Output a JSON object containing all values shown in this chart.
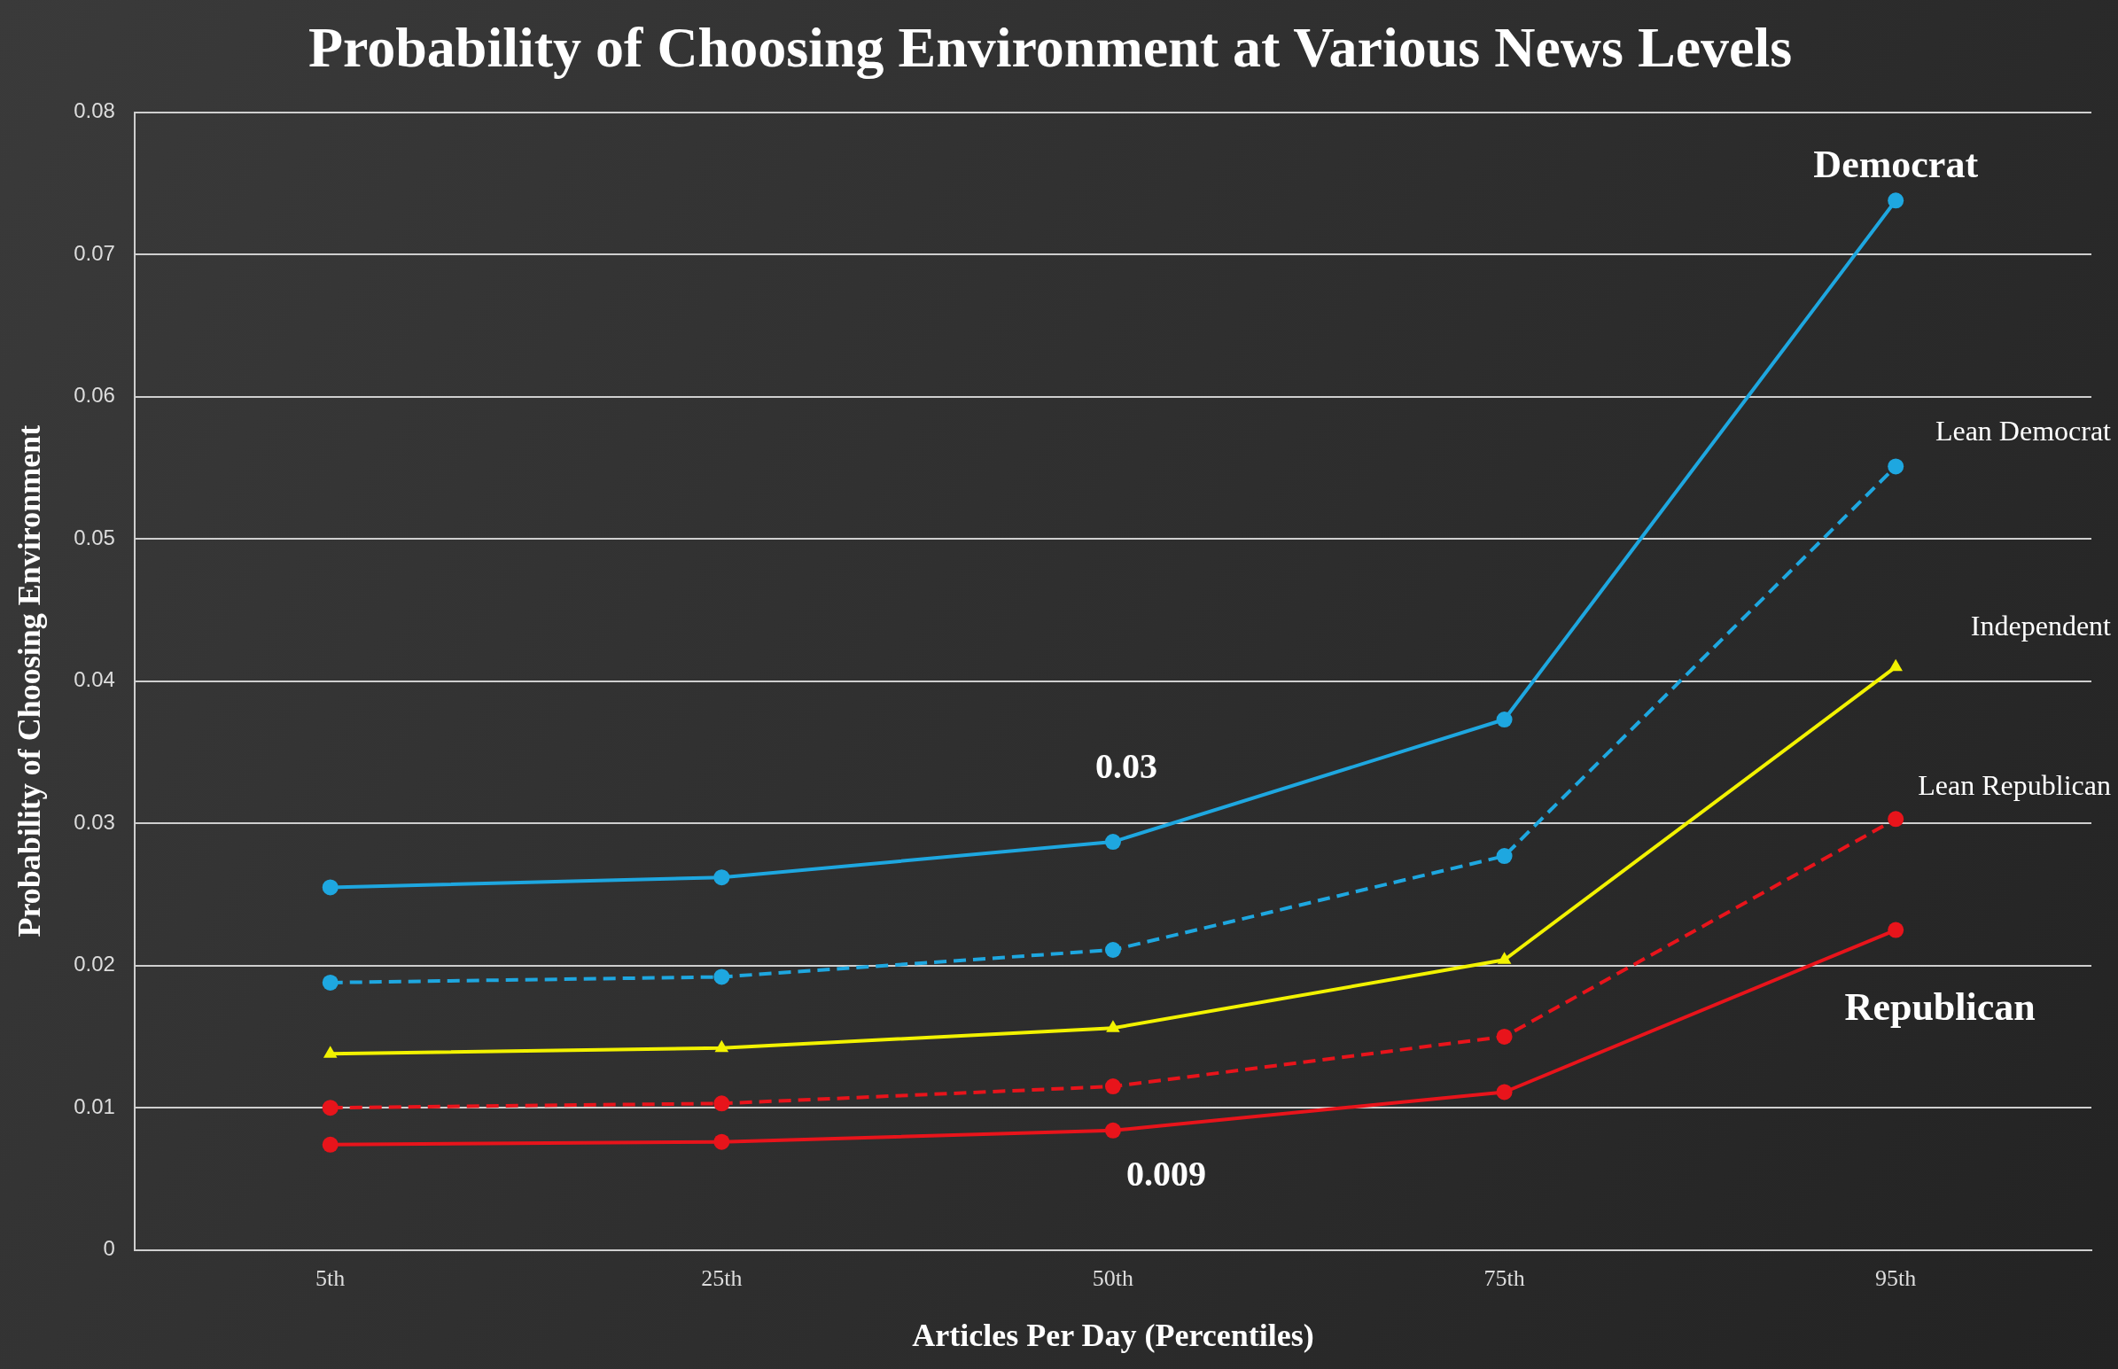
{
  "chart_data": {
    "type": "line",
    "title": "Probability of Choosing Environment at Various News Levels",
    "xlabel": "Articles Per Day (Percentiles)",
    "ylabel": "Probability of Choosing Environment",
    "categories": [
      "5th",
      "25th",
      "50th",
      "75th",
      "95th"
    ],
    "series": [
      {
        "name": "Democrat",
        "color": "#1ea7e0",
        "values": [
          0.0255,
          0.0262,
          0.0287,
          0.0373,
          0.0738
        ],
        "marker": "circle",
        "line_style": "solid"
      },
      {
        "name": "Lean Democrat",
        "color": "#1ea7e0",
        "values": [
          0.0188,
          0.0192,
          0.0211,
          0.0277,
          0.0551
        ],
        "marker": "circle",
        "line_style": "dashed"
      },
      {
        "name": "Independent",
        "color": "#f2f200",
        "values": [
          0.0138,
          0.0142,
          0.0156,
          0.0204,
          0.041
        ],
        "marker": "triangle",
        "line_style": "solid"
      },
      {
        "name": "Lean Republican",
        "color": "#e8141b",
        "values": [
          0.01,
          0.0103,
          0.0115,
          0.015,
          0.0303
        ],
        "marker": "circle",
        "line_style": "dashed"
      },
      {
        "name": "Republican",
        "color": "#e8141b",
        "values": [
          0.0074,
          0.0076,
          0.0084,
          0.0111,
          0.0225
        ],
        "marker": "circle",
        "line_style": "solid"
      }
    ],
    "annotations": [
      {
        "text": "0.03",
        "x": "50th",
        "y": 0.0287
      },
      {
        "text": "0.009",
        "x": "50th",
        "y": 0.0084
      }
    ],
    "ylim": [
      0,
      0.08
    ],
    "yticks": [
      0,
      0.01,
      0.02,
      0.03,
      0.04,
      0.05,
      0.06,
      0.07,
      0.08
    ],
    "grid": "y",
    "legend": false
  }
}
